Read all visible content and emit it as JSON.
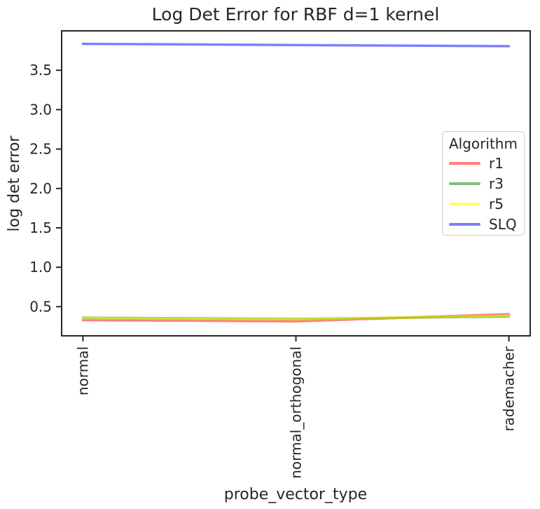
{
  "chart_data": {
    "type": "line",
    "title": "Log Det Error for RBF d=1 kernel",
    "xlabel": "probe_vector_type",
    "ylabel": "log det error",
    "categories": [
      "normal",
      "normal_orthogonal",
      "rademacher"
    ],
    "xlim": [
      -0.1,
      2.1
    ],
    "ylim": [
      0.13,
      4.0
    ],
    "yticks": [
      0.5,
      1.0,
      1.5,
      2.0,
      2.5,
      3.0,
      3.5
    ],
    "grid": false,
    "legend": {
      "title": "Algorithm",
      "position": "center-right"
    },
    "colors": {
      "r1": "rgba(255,0,0,0.5)",
      "r3": "rgba(0,128,0,0.5)",
      "r5": "rgba(255,255,0,0.55)",
      "SLQ": "rgba(0,0,255,0.5)",
      "axis": "#262626",
      "legend_border": "#cccccc"
    },
    "series": [
      {
        "name": "r1",
        "color": "rgba(255,0,0,0.5)",
        "values": [
          0.33,
          0.315,
          0.405
        ]
      },
      {
        "name": "r3",
        "color": "rgba(0,128,0,0.5)",
        "values": [
          0.36,
          0.345,
          0.375
        ]
      },
      {
        "name": "r5",
        "color": "rgba(255,255,0,0.55)",
        "values": [
          0.355,
          0.34,
          0.385
        ]
      },
      {
        "name": "SLQ",
        "color": "rgba(0,0,255,0.5)",
        "values": [
          3.835,
          3.82,
          3.805
        ]
      }
    ]
  }
}
